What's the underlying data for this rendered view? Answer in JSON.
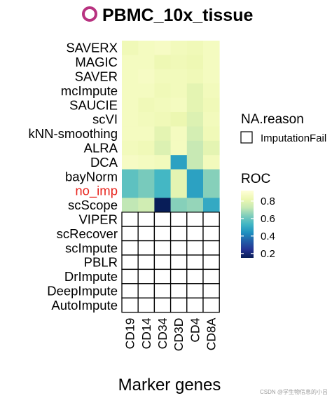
{
  "chart_data": {
    "type": "heatmap",
    "title": "PBMC_10x_tissue",
    "title_marker_color": "#b83280",
    "xlabel": "Marker genes",
    "ylabel": "",
    "genes": [
      "CD19",
      "CD14",
      "CD34",
      "CD3D",
      "CD4",
      "CD8A"
    ],
    "methods": [
      {
        "name": "SAVERX",
        "color": "#000000",
        "values": [
          0.84,
          0.86,
          0.87,
          0.85,
          0.84,
          0.86
        ]
      },
      {
        "name": "MAGIC",
        "color": "#000000",
        "values": [
          0.86,
          0.86,
          0.83,
          0.84,
          0.83,
          0.86
        ]
      },
      {
        "name": "SAVER",
        "color": "#000000",
        "values": [
          0.86,
          0.87,
          0.85,
          0.85,
          0.84,
          0.86
        ]
      },
      {
        "name": "mcImpute",
        "color": "#000000",
        "values": [
          0.86,
          0.86,
          0.84,
          0.85,
          0.8,
          0.85
        ]
      },
      {
        "name": "SAUCIE",
        "color": "#000000",
        "values": [
          0.86,
          0.84,
          0.85,
          0.86,
          0.8,
          0.84
        ]
      },
      {
        "name": "scVI",
        "color": "#000000",
        "values": [
          0.86,
          0.85,
          0.84,
          0.82,
          0.78,
          0.85
        ]
      },
      {
        "name": "kNN-smoothing",
        "color": "#000000",
        "values": [
          0.86,
          0.86,
          0.8,
          0.86,
          0.76,
          0.84
        ]
      },
      {
        "name": "ALRA",
        "color": "#000000",
        "values": [
          0.85,
          0.84,
          0.78,
          0.86,
          0.73,
          0.8
        ]
      },
      {
        "name": "DCA",
        "color": "#000000",
        "values": [
          0.87,
          0.86,
          0.85,
          0.48,
          0.73,
          0.85
        ]
      },
      {
        "name": "bayNorm",
        "color": "#000000",
        "values": [
          0.58,
          0.62,
          0.54,
          0.8,
          0.48,
          0.64
        ]
      },
      {
        "name": "no_imp",
        "color": "#e8261f",
        "values": [
          0.58,
          0.62,
          0.54,
          0.8,
          0.48,
          0.64
        ]
      },
      {
        "name": "scScope",
        "color": "#000000",
        "values": [
          0.72,
          0.75,
          0.12,
          0.64,
          0.66,
          0.5
        ]
      },
      {
        "name": "VIPER",
        "color": "#000000",
        "values": [
          null,
          null,
          null,
          null,
          null,
          null
        ]
      },
      {
        "name": "scRecover",
        "color": "#000000",
        "values": [
          null,
          null,
          null,
          null,
          null,
          null
        ]
      },
      {
        "name": "scImpute",
        "color": "#000000",
        "values": [
          null,
          null,
          null,
          null,
          null,
          null
        ]
      },
      {
        "name": "PBLR",
        "color": "#000000",
        "values": [
          null,
          null,
          null,
          null,
          null,
          null
        ]
      },
      {
        "name": "DrImpute",
        "color": "#000000",
        "values": [
          null,
          null,
          null,
          null,
          null,
          null
        ]
      },
      {
        "name": "DeepImpute",
        "color": "#000000",
        "values": [
          null,
          null,
          null,
          null,
          null,
          null
        ]
      },
      {
        "name": "AutoImpute",
        "color": "#000000",
        "values": [
          null,
          null,
          null,
          null,
          null,
          null
        ]
      }
    ],
    "na_legend": {
      "title": "NA.reason",
      "label": "ImputationFail"
    },
    "color_legend": {
      "title": "ROC",
      "ticks": [
        0.8,
        0.6,
        0.4,
        0.2
      ],
      "tick_labels": [
        "0.8",
        "0.6",
        "0.4",
        "0.2"
      ],
      "range": [
        0.15,
        0.92
      ]
    },
    "colors": [
      "#081d58",
      "#253494",
      "#225ea8",
      "#1d91c0",
      "#41b6c4",
      "#7fcdbb",
      "#c7e9b4",
      "#edf8b1",
      "#ffffd9"
    ],
    "grid": false,
    "legend_position": "right"
  },
  "watermark": "CSDN @学生物信息的小吕"
}
